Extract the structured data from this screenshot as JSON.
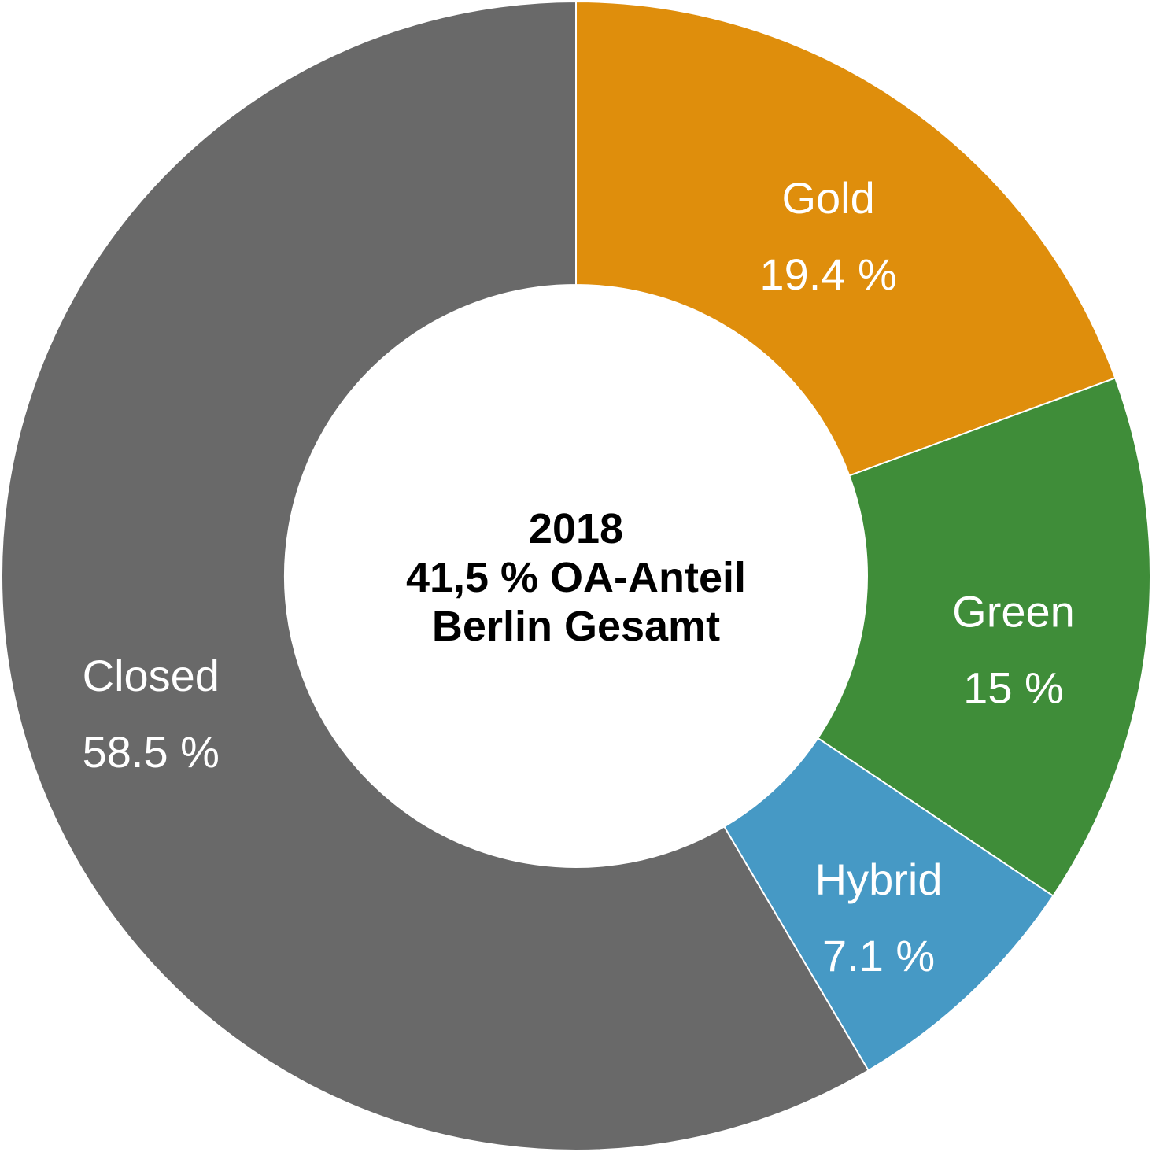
{
  "chart_data": {
    "type": "pie",
    "style": "donut",
    "center_text": {
      "line1": "2018",
      "line2": "41,5 % OA-Anteil",
      "line3": "Berlin Gesamt"
    },
    "slices": [
      {
        "name": "Gold",
        "value": 19.4,
        "value_label": "19.4 %",
        "color": "#DF8E0C"
      },
      {
        "name": "Green",
        "value": 15.0,
        "value_label": "15 %",
        "color": "#3F8D39"
      },
      {
        "name": "Hybrid",
        "value": 7.1,
        "value_label": "7.1 %",
        "color": "#4699C5"
      },
      {
        "name": "Closed",
        "value": 58.5,
        "value_label": "58.5 %",
        "color": "#696969"
      }
    ],
    "legend": "none",
    "start_angle": "12 o'clock",
    "direction": "clockwise"
  }
}
